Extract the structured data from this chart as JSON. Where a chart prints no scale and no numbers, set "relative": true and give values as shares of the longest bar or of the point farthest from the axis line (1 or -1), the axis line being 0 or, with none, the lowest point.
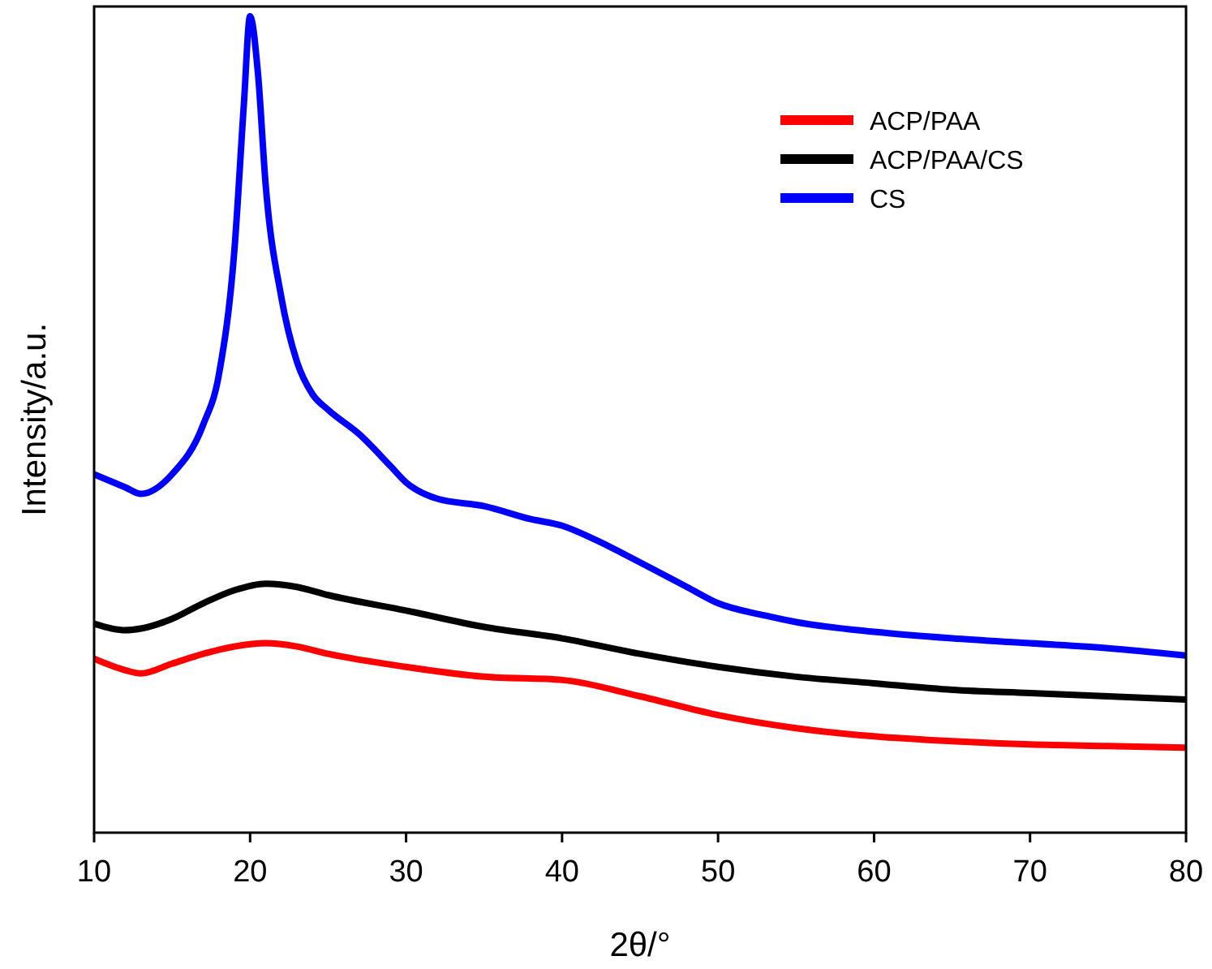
{
  "chart_data": {
    "type": "line",
    "xlabel": "2θ/°",
    "ylabel": "Intensity/a.u.",
    "relative": true,
    "xlim": [
      10,
      80
    ],
    "xticks": [
      10,
      20,
      30,
      40,
      50,
      60,
      70,
      80
    ],
    "legend": "top right",
    "grid": false,
    "line_style": "solid",
    "series": [
      {
        "name": "ACP/PAA",
        "color": "#ff0000",
        "x": [
          10,
          12,
          13,
          15,
          17,
          19,
          21,
          23,
          25,
          30,
          35,
          40,
          45,
          50,
          55,
          60,
          65,
          70,
          75,
          80
        ],
        "values": [
          0.213,
          0.199,
          0.195,
          0.207,
          0.219,
          0.228,
          0.232,
          0.228,
          0.219,
          0.203,
          0.191,
          0.187,
          0.167,
          0.144,
          0.128,
          0.118,
          0.112,
          0.108,
          0.106,
          0.104
        ]
      },
      {
        "name": "ACP/PAA/CS",
        "color": "#000000",
        "x": [
          10,
          12,
          13,
          15,
          17,
          19,
          21,
          23,
          25,
          30,
          35,
          40,
          45,
          50,
          55,
          60,
          65,
          70,
          75,
          80
        ],
        "values": [
          0.256,
          0.248,
          0.25,
          0.262,
          0.281,
          0.297,
          0.305,
          0.301,
          0.291,
          0.272,
          0.252,
          0.238,
          0.219,
          0.203,
          0.191,
          0.183,
          0.175,
          0.171,
          0.167,
          0.163
        ]
      },
      {
        "name": "CS",
        "color": "#0000ff",
        "x": [
          10,
          12,
          13,
          15,
          17,
          18,
          19,
          19.6,
          20,
          20.5,
          21,
          22,
          23,
          24,
          25,
          27,
          29,
          30,
          32,
          35,
          38,
          40,
          42,
          45,
          48,
          50,
          53,
          55,
          60,
          65,
          70,
          75,
          80
        ],
        "values": [
          0.439,
          0.423,
          0.415,
          0.439,
          0.5,
          0.561,
          0.715,
          0.892,
          1.0,
          0.931,
          0.793,
          0.656,
          0.577,
          0.537,
          0.518,
          0.488,
          0.449,
          0.429,
          0.409,
          0.4,
          0.384,
          0.376,
          0.36,
          0.331,
          0.301,
          0.281,
          0.266,
          0.258,
          0.246,
          0.238,
          0.232,
          0.226,
          0.217
        ]
      }
    ]
  }
}
